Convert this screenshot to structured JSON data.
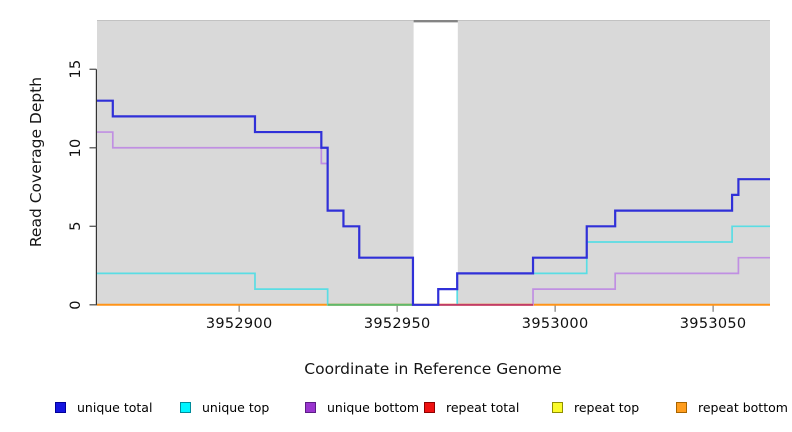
{
  "figure": {
    "x_axis_title": "Coordinate in Reference Genome",
    "y_axis_title": "Read Coverage Depth"
  },
  "chart_data": {
    "type": "line",
    "subtype": "step-coverage",
    "title": "",
    "xlabel": "Coordinate in Reference Genome",
    "ylabel": "Read Coverage Depth",
    "xlim": [
      3952855,
      3953068
    ],
    "ylim": [
      0,
      18.1
    ],
    "x_ticks": [
      3952900,
      3952950,
      3953000,
      3953050
    ],
    "y_ticks": [
      0,
      5,
      10,
      15
    ],
    "grid": false,
    "legend_position": "bottom",
    "colors": {
      "plot_bg": "#d9d9d9",
      "page_bg": "#ffffff",
      "axis_line": "#333333",
      "tick_x": "#909090",
      "tick_y": "#555555",
      "plot_top_border": "#c2c2c2"
    },
    "gap_region": {
      "comment": "uncovered/masked interval rendered as white band with gray cap",
      "x1": 3952955.2,
      "x2": 3952969.2,
      "fill": "#ffffff",
      "top_cap_color": "#848484"
    },
    "series": [
      {
        "key": "unique_total",
        "legend_label": "unique total",
        "legend_fill": "#1515e0",
        "legend_border": "#00009a",
        "line_color": "#3030d8",
        "line_width": 2.2,
        "points": [
          [
            3952855,
            13
          ],
          [
            3952860,
            12
          ],
          [
            3952905,
            11
          ],
          [
            3952926,
            10
          ],
          [
            3952928,
            6
          ],
          [
            3952933,
            5
          ],
          [
            3952938,
            3
          ],
          [
            3952955,
            0
          ],
          [
            3952963,
            1
          ],
          [
            3952969,
            2
          ],
          [
            3952993,
            3
          ],
          [
            3953010,
            5
          ],
          [
            3953019,
            6
          ],
          [
            3953056,
            7
          ],
          [
            3953058,
            8
          ],
          [
            3953068,
            8
          ]
        ]
      },
      {
        "key": "unique_top",
        "legend_label": "unique top",
        "legend_fill": "#00f5ff",
        "legend_border": "#008b9a",
        "line_color": "#5adde4",
        "line_width": 1.7,
        "points": [
          [
            3952855,
            2
          ],
          [
            3952905,
            1
          ],
          [
            3952928,
            0
          ],
          [
            3952969,
            2
          ],
          [
            3953010,
            4
          ],
          [
            3953056,
            5
          ],
          [
            3953068,
            5
          ]
        ]
      },
      {
        "key": "unique_bottom",
        "legend_label": "unique bottom",
        "legend_fill": "#9a35cf",
        "legend_border": "#5c1d86",
        "line_color": "#c08fe2",
        "line_width": 1.7,
        "points": [
          [
            3952855,
            11
          ],
          [
            3952860,
            10
          ],
          [
            3952926,
            9
          ],
          [
            3952928,
            6
          ],
          [
            3952933,
            5
          ],
          [
            3952938,
            3
          ],
          [
            3952955,
            0
          ],
          [
            3952993,
            1
          ],
          [
            3953019,
            2
          ],
          [
            3953058,
            3
          ],
          [
            3953068,
            3
          ]
        ]
      },
      {
        "key": "repeat_total",
        "legend_label": "repeat total",
        "legend_fill": "#ee1111",
        "legend_border": "#8e0000",
        "line_color": "#ee1111",
        "line_width": 1.7,
        "points": [
          [
            3952855,
            0
          ],
          [
            3953068,
            0
          ]
        ]
      },
      {
        "key": "repeat_top",
        "legend_label": "repeat top",
        "legend_fill": "#fbfb2a",
        "legend_border": "#8f8f00",
        "line_color": "#fbfb2a",
        "line_width": 1.7,
        "points": [
          [
            3952855,
            0
          ],
          [
            3953068,
            0
          ]
        ]
      },
      {
        "key": "repeat_bottom",
        "legend_label": "repeat bottom",
        "legend_fill": "#ff9d1e",
        "legend_border": "#a86400",
        "line_color": "#ff9418",
        "line_width": 2.0,
        "points": [
          [
            3952855,
            0
          ],
          [
            3953068,
            0
          ]
        ]
      }
    ],
    "overlap_segments": [
      {
        "name": "unique-top-over-repeat-top-zero-overlap",
        "color": "#5fb96a",
        "y": 0,
        "x1": 3952928,
        "x2": 3952955,
        "width": 2.0
      },
      {
        "name": "unique-bottom-over-repeat-total-zero-overlap",
        "color": "#c23b68",
        "y": 0,
        "x1": 3952963,
        "x2": 3952993,
        "width": 1.8
      }
    ],
    "draw_order": [
      "repeat_bottom",
      "unique_bottom",
      "unique_top",
      "__overlaps__",
      "unique_total"
    ]
  }
}
